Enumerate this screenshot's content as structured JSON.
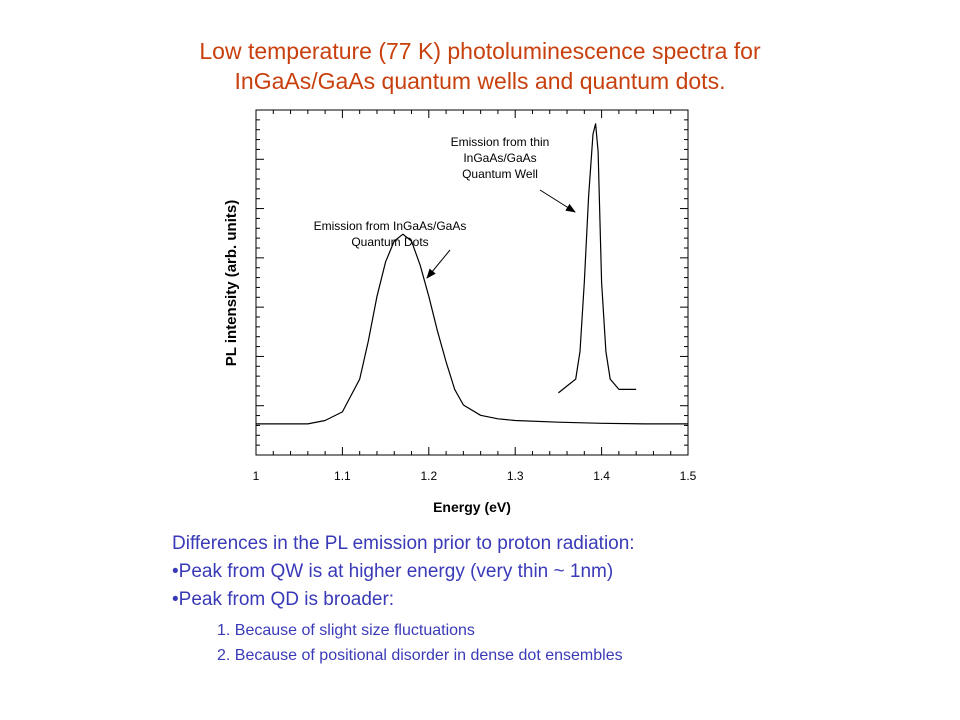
{
  "slide": {
    "title_line1": "Low temperature (77 K) photoluminescence spectra for",
    "title_line2": "InGaAs/GaAs quantum wells and quantum dots."
  },
  "notes": {
    "heading": "Differences in the PL emission prior to proton radiation:",
    "bullets": [
      "•Peak from QW is at higher energy (very thin ~ 1nm)",
      "•Peak from QD is broader:"
    ],
    "subpoints": [
      "1. Because of slight size fluctuations",
      "2. Because of positional disorder in dense dot ensembles"
    ]
  },
  "chart_data": {
    "type": "line",
    "xlabel": "Energy (eV)",
    "ylabel": "PL intensity (arb. units)",
    "xlim": [
      1,
      1.5
    ],
    "ylim": [
      0,
      1
    ],
    "x_ticks": [
      "1",
      "1.1",
      "1.2",
      "1.3",
      "1.4",
      "1.5"
    ],
    "grid": false,
    "series": [
      {
        "name": "",
        "x": [
          1.0,
          1.06,
          1.08,
          1.1,
          1.12,
          1.13,
          1.14,
          1.15,
          1.16,
          1.17,
          1.18,
          1.19,
          1.2,
          1.21,
          1.22,
          1.23,
          1.24,
          1.26,
          1.28,
          1.3,
          1.35,
          1.4,
          1.45,
          1.5
        ],
        "y": [
          0.09,
          0.09,
          0.1,
          0.125,
          0.22,
          0.33,
          0.46,
          0.56,
          0.62,
          0.64,
          0.62,
          0.55,
          0.46,
          0.36,
          0.27,
          0.19,
          0.145,
          0.115,
          0.105,
          0.1,
          0.095,
          0.092,
          0.09,
          0.09
        ],
        "color": "#000000"
      },
      {
        "name": "",
        "x": [
          1.35,
          1.36,
          1.37,
          1.375,
          1.38,
          1.385,
          1.39,
          1.393,
          1.396,
          1.4,
          1.405,
          1.41,
          1.42,
          1.44
        ],
        "y": [
          0.18,
          0.2,
          0.22,
          0.3,
          0.5,
          0.75,
          0.93,
          0.96,
          0.88,
          0.5,
          0.3,
          0.22,
          0.19,
          0.19
        ],
        "color": "#000000"
      }
    ],
    "annotations": [
      {
        "lines": [
          "Emission from InGaAs/GaAs",
          "Quantum Dots"
        ],
        "points_to": [
          1.175,
          0.62
        ]
      },
      {
        "lines": [
          "Emission from thin",
          "InGaAs/GaAs",
          "Quantum Well"
        ],
        "points_to": [
          1.385,
          0.75
        ]
      }
    ]
  }
}
